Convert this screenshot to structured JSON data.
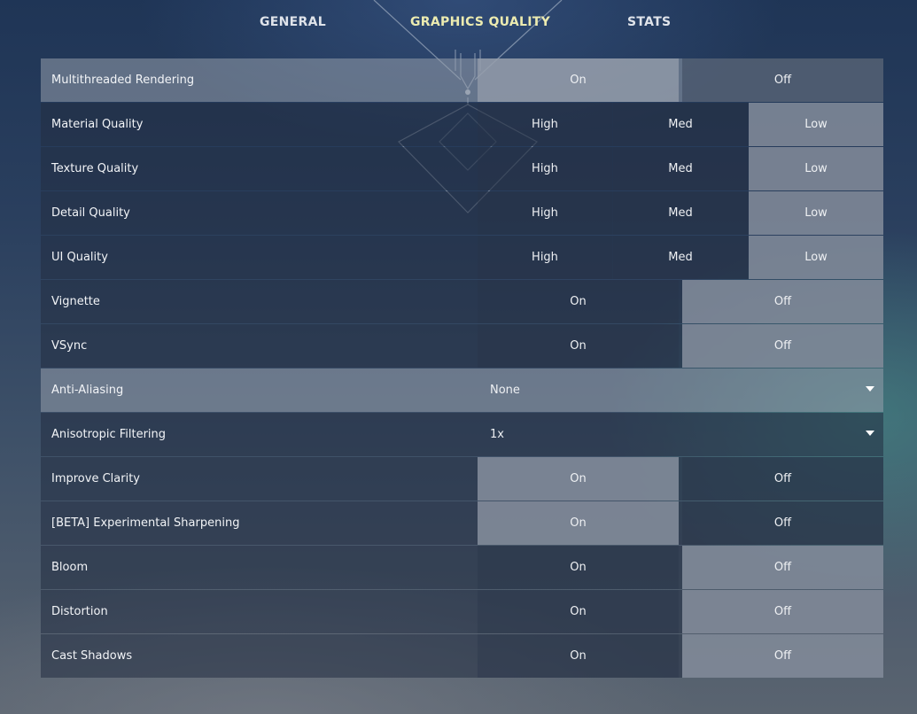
{
  "tabs": [
    {
      "label": "GENERAL",
      "active": false
    },
    {
      "label": "GRAPHICS QUALITY",
      "active": true
    },
    {
      "label": "STATS",
      "active": false
    }
  ],
  "settings": {
    "multithreaded": {
      "label": "Multithreaded Rendering",
      "options": [
        "On",
        "Off"
      ],
      "selected": "On"
    },
    "material": {
      "label": "Material Quality",
      "options": [
        "High",
        "Med",
        "Low"
      ],
      "selected": "Low"
    },
    "texture": {
      "label": "Texture Quality",
      "options": [
        "High",
        "Med",
        "Low"
      ],
      "selected": "Low"
    },
    "detail": {
      "label": "Detail Quality",
      "options": [
        "High",
        "Med",
        "Low"
      ],
      "selected": "Low"
    },
    "ui": {
      "label": "UI Quality",
      "options": [
        "High",
        "Med",
        "Low"
      ],
      "selected": "Low"
    },
    "vignette": {
      "label": "Vignette",
      "options": [
        "On",
        "Off"
      ],
      "selected": "Off"
    },
    "vsync": {
      "label": "VSync",
      "options": [
        "On",
        "Off"
      ],
      "selected": "Off"
    },
    "anti_aliasing": {
      "label": "Anti-Aliasing",
      "value": "None"
    },
    "anisotropic": {
      "label": "Anisotropic Filtering",
      "value": "1x"
    },
    "improve_clarity": {
      "label": "Improve Clarity",
      "options": [
        "On",
        "Off"
      ],
      "selected": "On"
    },
    "sharpening": {
      "label": "[BETA] Experimental Sharpening",
      "options": [
        "On",
        "Off"
      ],
      "selected": "On"
    },
    "bloom": {
      "label": "Bloom",
      "options": [
        "On",
        "Off"
      ],
      "selected": "Off"
    },
    "distortion": {
      "label": "Distortion",
      "options": [
        "On",
        "Off"
      ],
      "selected": "Off"
    },
    "cast_shadows": {
      "label": "Cast Shadows",
      "options": [
        "On",
        "Off"
      ],
      "selected": "Off"
    }
  },
  "icons": {
    "dropdown": "caret-down-icon",
    "emblem": "diamond-emblem-icon"
  }
}
